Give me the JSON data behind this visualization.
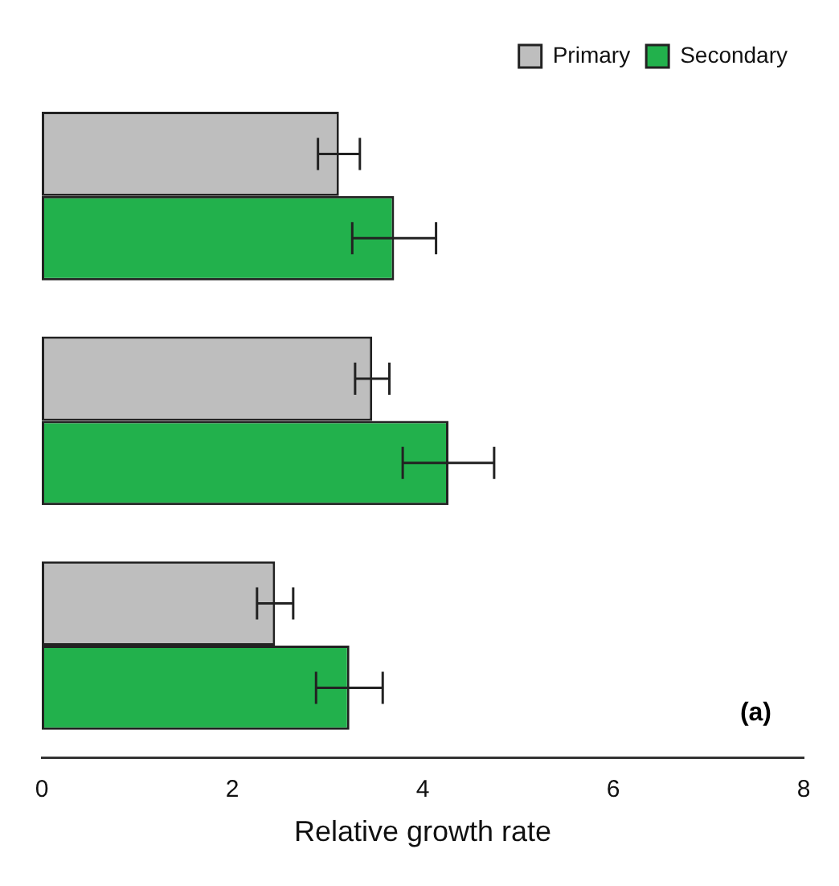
{
  "chart_data": {
    "type": "bar",
    "orientation": "horizontal",
    "xlabel": "Relative growth rate",
    "categories": [
      null,
      null,
      null
    ],
    "series": [
      {
        "name": "Primary",
        "color": "#bebebe",
        "values": [
          3.12,
          3.47,
          2.45
        ],
        "errors": [
          0.22,
          0.18,
          0.19
        ]
      },
      {
        "name": "Secondary",
        "color": "#22b14c",
        "values": [
          3.7,
          4.27,
          3.23
        ],
        "errors": [
          0.44,
          0.48,
          0.35
        ]
      }
    ],
    "xlim": [
      0,
      8
    ],
    "xticks": [
      0,
      2,
      4,
      6,
      8
    ],
    "grid": false,
    "legend": "top right",
    "annotations": [
      "(a)"
    ]
  }
}
